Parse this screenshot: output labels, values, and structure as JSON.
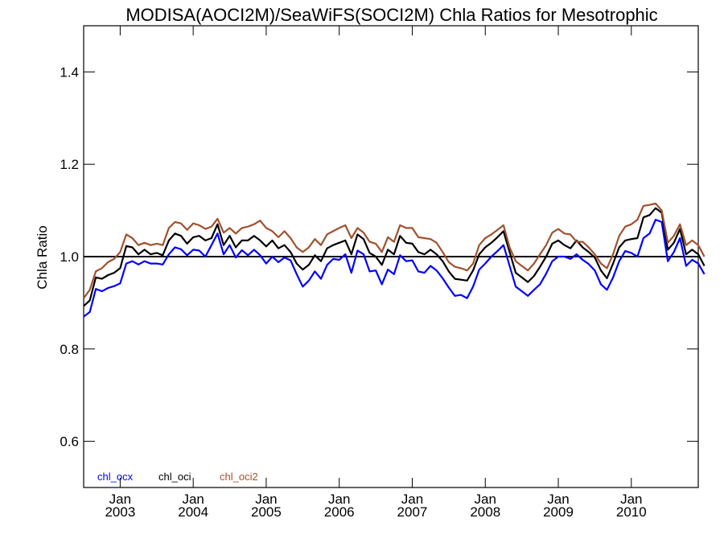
{
  "chart_data": {
    "type": "line",
    "title": "MODISA(AOCI2M)/SeaWiFS(SOCI2M)  Chla Ratios for Mesotrophic",
    "ylabel": "Chla Ratio",
    "xlabel": "",
    "ylim": [
      0.5,
      1.5
    ],
    "xlim": [
      "2002-07",
      "2010-12"
    ],
    "y_ticks": [
      "0.6",
      "0.8",
      "1.0",
      "1.2",
      "1.4"
    ],
    "x_ticks": [
      {
        "month": "Jan",
        "year": "2003",
        "date": "2003-01"
      },
      {
        "month": "Jan",
        "year": "2004",
        "date": "2004-01"
      },
      {
        "month": "Jan",
        "year": "2005",
        "date": "2005-01"
      },
      {
        "month": "Jan",
        "year": "2006",
        "date": "2006-01"
      },
      {
        "month": "Jan",
        "year": "2007",
        "date": "2007-01"
      },
      {
        "month": "Jan",
        "year": "2008",
        "date": "2008-01"
      },
      {
        "month": "Jan",
        "year": "2009",
        "date": "2009-01"
      },
      {
        "month": "Jan",
        "year": "2010",
        "date": "2010-01"
      }
    ],
    "reference_line": 1.0,
    "legend_placement": "bottom-left",
    "start": "2002-07",
    "series": [
      {
        "name": "chl_ocx",
        "color": "#0000ff",
        "values": [
          0.87,
          0.88,
          0.93,
          0.925,
          0.932,
          0.936,
          0.942,
          0.985,
          0.99,
          0.983,
          0.99,
          0.985,
          0.985,
          0.983,
          1.005,
          1.02,
          1.016,
          1.003,
          1.015,
          1.013,
          1.0,
          1.025,
          1.05,
          1.005,
          1.025,
          0.998,
          1.014,
          1.003,
          1.015,
          1.003,
          0.985,
          1.0,
          0.988,
          0.998,
          0.992,
          0.962,
          0.935,
          0.948,
          0.968,
          0.952,
          0.982,
          0.995,
          0.993,
          1.005,
          0.965,
          1.013,
          1.005,
          0.968,
          0.97,
          0.94,
          0.972,
          0.962,
          1.003,
          0.99,
          0.992,
          0.968,
          0.965,
          0.98,
          0.97,
          0.953,
          0.933,
          0.915,
          0.917,
          0.91,
          0.935,
          0.972,
          0.985,
          1.0,
          1.012,
          1.025,
          0.98,
          0.935,
          0.925,
          0.915,
          0.928,
          0.94,
          0.963,
          0.99,
          1.0,
          1.0,
          0.995,
          1.005,
          0.993,
          0.984,
          0.97,
          0.94,
          0.928,
          0.955,
          0.99,
          1.012,
          1.008,
          1.0,
          1.04,
          1.05,
          1.08,
          1.075,
          0.99,
          1.01,
          1.04,
          0.98,
          0.993,
          0.985,
          0.962
        ]
      },
      {
        "name": "chl_oci",
        "color": "#000000",
        "values": [
          0.893,
          0.905,
          0.955,
          0.952,
          0.96,
          0.965,
          0.975,
          1.023,
          1.02,
          1.005,
          1.015,
          1.005,
          1.008,
          1.003,
          1.035,
          1.05,
          1.045,
          1.028,
          1.042,
          1.045,
          1.035,
          1.04,
          1.07,
          1.025,
          1.045,
          1.02,
          1.035,
          1.035,
          1.045,
          1.035,
          1.022,
          1.035,
          1.018,
          1.025,
          1.01,
          0.985,
          0.972,
          0.982,
          1.003,
          0.99,
          1.018,
          1.025,
          1.03,
          1.035,
          1.005,
          1.048,
          1.038,
          1.008,
          1.0,
          0.982,
          1.015,
          1.005,
          1.045,
          1.03,
          1.028,
          1.01,
          1.005,
          1.015,
          1.005,
          0.99,
          0.968,
          0.952,
          0.95,
          0.948,
          0.97,
          1.005,
          1.02,
          1.03,
          1.042,
          1.055,
          1.01,
          0.965,
          0.955,
          0.945,
          0.958,
          0.978,
          1.0,
          1.028,
          1.035,
          1.025,
          1.018,
          1.035,
          1.02,
          1.01,
          0.998,
          0.97,
          0.953,
          0.985,
          1.02,
          1.035,
          1.038,
          1.04,
          1.085,
          1.09,
          1.105,
          1.095,
          1.015,
          1.03,
          1.06,
          1.005,
          1.015,
          1.005,
          0.98
        ]
      },
      {
        "name": "chl_oci2",
        "color": "#a0522d",
        "values": [
          0.91,
          0.928,
          0.968,
          0.975,
          0.988,
          0.995,
          1.01,
          1.048,
          1.04,
          1.025,
          1.03,
          1.025,
          1.028,
          1.025,
          1.062,
          1.075,
          1.072,
          1.058,
          1.072,
          1.068,
          1.06,
          1.065,
          1.082,
          1.052,
          1.062,
          1.05,
          1.062,
          1.065,
          1.07,
          1.078,
          1.062,
          1.055,
          1.042,
          1.055,
          1.04,
          1.02,
          1.01,
          1.02,
          1.038,
          1.025,
          1.048,
          1.055,
          1.062,
          1.068,
          1.04,
          1.062,
          1.052,
          1.032,
          1.028,
          1.01,
          1.042,
          1.032,
          1.068,
          1.062,
          1.062,
          1.042,
          1.04,
          1.038,
          1.03,
          1.01,
          0.988,
          0.978,
          0.975,
          0.97,
          0.985,
          1.025,
          1.04,
          1.048,
          1.058,
          1.068,
          1.02,
          0.99,
          0.98,
          0.97,
          0.985,
          1.005,
          1.025,
          1.052,
          1.06,
          1.05,
          1.048,
          1.032,
          1.032,
          1.02,
          1.005,
          0.985,
          0.975,
          1.005,
          1.045,
          1.065,
          1.07,
          1.08,
          1.11,
          1.112,
          1.115,
          1.1,
          1.03,
          1.045,
          1.07,
          1.025,
          1.035,
          1.025,
          1.0
        ]
      }
    ]
  }
}
